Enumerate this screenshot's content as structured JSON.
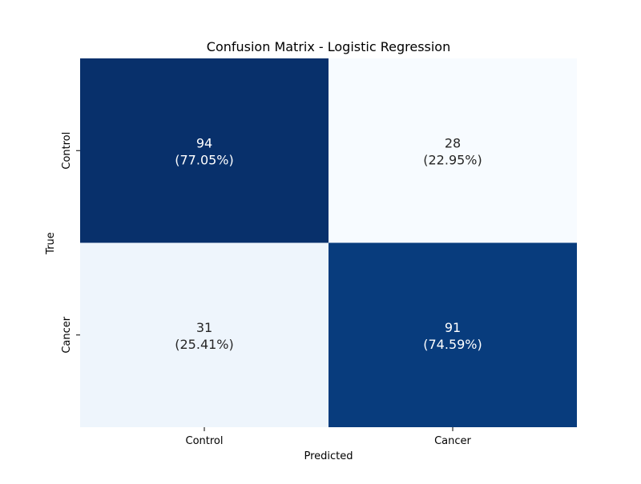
{
  "chart_data": {
    "type": "heatmap",
    "title": "Confusion Matrix - Logistic Regression",
    "xlabel": "Predicted",
    "ylabel": "True",
    "x_categories": [
      "Control",
      "Cancer"
    ],
    "y_categories": [
      "Control",
      "Cancer"
    ],
    "values": [
      [
        94,
        28
      ],
      [
        31,
        91
      ]
    ],
    "annotations": [
      [
        {
          "count": "94",
          "percent": "(77.05%)"
        },
        {
          "count": "28",
          "percent": "(22.95%)"
        }
      ],
      [
        {
          "count": "31",
          "percent": "(25.41%)"
        },
        {
          "count": "91",
          "percent": "(74.59%)"
        }
      ]
    ],
    "colormap": "Blues",
    "colors": {
      "low": "#f7fbff",
      "high": "#08306b"
    },
    "grid": false,
    "colorbar": false
  }
}
